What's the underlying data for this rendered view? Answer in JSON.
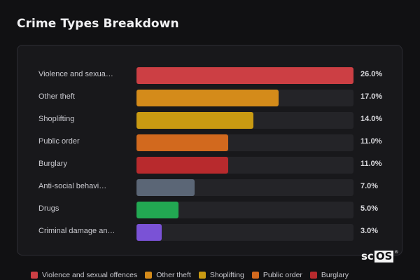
{
  "page": {
    "title": "Crime Types Breakdown"
  },
  "chart_data": {
    "type": "bar",
    "orientation": "horizontal",
    "categories": [
      "Violence and sexua…",
      "Other theft",
      "Shoplifting",
      "Public order",
      "Burglary",
      "Anti-social behavi…",
      "Drugs",
      "Criminal damage an…"
    ],
    "values": [
      26.0,
      17.0,
      14.0,
      11.0,
      11.0,
      7.0,
      5.0,
      3.0
    ],
    "value_labels": [
      "26.0%",
      "17.0%",
      "14.0%",
      "11.0%",
      "11.0%",
      "7.0%",
      "5.0%",
      "3.0%"
    ],
    "colors": [
      "#cc3f44",
      "#d48b1a",
      "#c99a12",
      "#d2691e",
      "#b82a2d",
      "#5b6676",
      "#22a852",
      "#7a52d6"
    ],
    "xlim": [
      0,
      26.0
    ],
    "grid": false,
    "legend": {
      "placement": "bottom",
      "entries": [
        {
          "label": "Violence and sexual offences",
          "color": "#cc3f44"
        },
        {
          "label": "Other theft",
          "color": "#d48b1a"
        },
        {
          "label": "Shoplifting",
          "color": "#c99a12"
        },
        {
          "label": "Public order",
          "color": "#d2691e"
        },
        {
          "label": "Burglary",
          "color": "#b82a2d"
        }
      ]
    }
  },
  "watermark": {
    "left": "sc",
    "boxed": "OS",
    "mark": "®"
  }
}
